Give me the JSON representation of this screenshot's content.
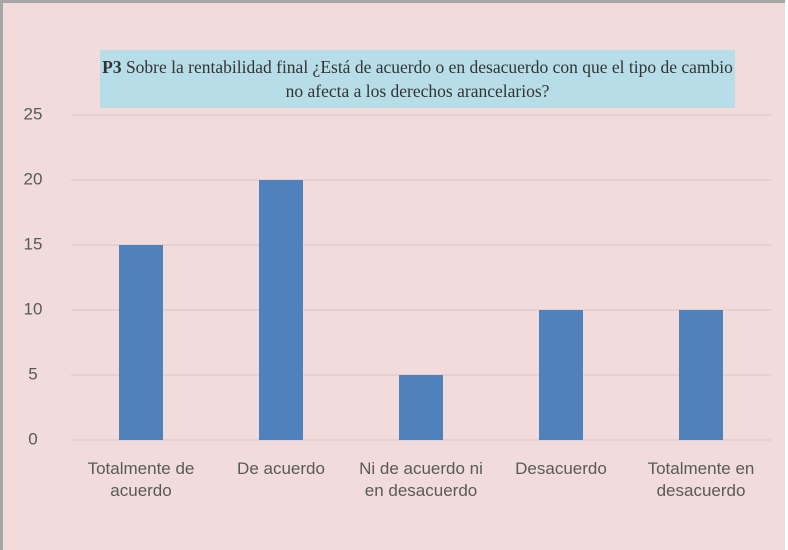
{
  "chart_data": {
    "type": "bar",
    "title_bold": "P3",
    "title": "Sobre la rentabilidad final ¿Está de acuerdo o en desacuerdo con que el tipo de cambio no afecta a los derechos arancelarios?",
    "categories": [
      "Totalmente de acuerdo",
      "De acuerdo",
      "Ni de acuerdo ni en desacuerdo",
      "Desacuerdo",
      "Totalmente en desacuerdo"
    ],
    "values": [
      15,
      20,
      5,
      10,
      10
    ],
    "color": "#4f81bd",
    "ylim": [
      0,
      25
    ],
    "yticks": [
      0,
      5,
      10,
      15,
      20,
      25
    ],
    "grid": true
  }
}
